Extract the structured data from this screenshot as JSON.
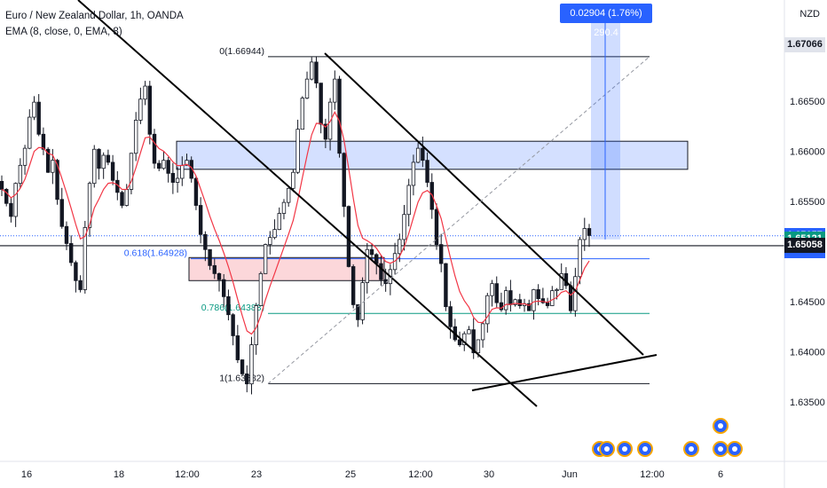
{
  "header": {
    "symbol_line": "Euro / New Zealand Dollar, 1h, OANDA",
    "indicator_line": "EMA (8, close, 0, EMA, 8)",
    "currency": "NZD"
  },
  "measure": {
    "label": "0.02904 (1.76%) 290.4"
  },
  "price_tags": [
    {
      "text": "1.67066",
      "price": 1.67066,
      "bg": "#e0e3eb",
      "fg": "#131722"
    },
    {
      "text": "1.65157",
      "price": 1.65157,
      "bg": "#2962ff",
      "fg": "#ffffff"
    },
    {
      "text": "29:42",
      "price": 1.6501,
      "bg": "#2962ff",
      "fg": "#ffffff"
    },
    {
      "text": "1.65121",
      "price": 1.65121,
      "bg": "#089981",
      "fg": "#ffffff"
    },
    {
      "text": "1.65058",
      "price": 1.65058,
      "bg": "#131722",
      "fg": "#ffffff"
    }
  ],
  "fib_labels": [
    {
      "text": "0(1.66944)",
      "price": 1.66944,
      "color": "#131722"
    },
    {
      "text": "0.618(1.64928)",
      "price": 1.64928,
      "color": "#2962ff"
    },
    {
      "text": "0.786(1.64383)",
      "price": 1.64383,
      "color": "#089981"
    },
    {
      "text": "1(1.63682)",
      "price": 1.63682,
      "color": "#131722"
    }
  ],
  "colors": {
    "up": "#131722",
    "down": "#131722",
    "ema": "#f23645",
    "zone_blue": "#2962ff",
    "zone_red": "#f23645",
    "fib_blue": "#2962ff",
    "fib_green": "#089981"
  },
  "chart_data": {
    "type": "candlestick",
    "title": "Euro / New Zealand Dollar, 1h, OANDA",
    "ylabel": "NZD",
    "ylim": [
      1.6325,
      1.6725
    ],
    "y_ticks": [
      "1.66500",
      "1.66000",
      "1.65500",
      "1.64500",
      "1.64000",
      "1.63500"
    ],
    "y_tick_values": [
      1.665,
      1.66,
      1.655,
      1.645,
      1.64,
      1.635
    ],
    "x_ticks": [
      "16",
      "18",
      "12:00",
      "23",
      "25",
      "12:00",
      "30",
      "Jun",
      "12:00",
      "6"
    ],
    "fib_levels": [
      {
        "ratio": 0,
        "price": 1.66944
      },
      {
        "ratio": 0.618,
        "price": 1.64928
      },
      {
        "ratio": 0.786,
        "price": 1.64383
      },
      {
        "ratio": 1,
        "price": 1.63682
      }
    ],
    "resistance_zone": [
      1.6582,
      1.661
    ],
    "demand_zone": [
      1.6471,
      1.6494
    ],
    "measure": {
      "change": 0.02904,
      "percent": 1.76,
      "pips": 290.4
    },
    "last_price": 1.65157,
    "countdown": "29:42",
    "levels": [
      1.65121,
      1.65058,
      1.67066
    ],
    "ohlc_path": [
      1.6562,
      1.6548,
      1.6535,
      1.6568,
      1.6586,
      1.6603,
      1.6634,
      1.6649,
      1.6617,
      1.6602,
      1.6579,
      1.6591,
      1.6552,
      1.6525,
      1.6508,
      1.6489,
      1.6471,
      1.6462,
      1.6524,
      1.6568,
      1.6602,
      1.6583,
      1.6596,
      1.6589,
      1.6571,
      1.6559,
      1.6546,
      1.6562,
      1.6598,
      1.6631,
      1.6652,
      1.6665,
      1.6617,
      1.6588,
      1.6583,
      1.6591,
      1.6578,
      1.6569,
      1.6573,
      1.6586,
      1.6591,
      1.6573,
      1.6546,
      1.6517,
      1.6502,
      1.6486,
      1.6478,
      1.6472,
      1.6455,
      1.6437,
      1.6416,
      1.6392,
      1.6378,
      1.6368,
      1.6407,
      1.6446,
      1.6478,
      1.6507,
      1.6514,
      1.6522,
      1.6538,
      1.6549,
      1.6563,
      1.6579,
      1.6622,
      1.6653,
      1.6672,
      1.6689,
      1.6668,
      1.6627,
      1.6612,
      1.6649,
      1.6672,
      1.6598,
      1.6545,
      1.6485,
      1.6447,
      1.6432,
      1.6469,
      1.6502,
      1.6497,
      1.6488,
      1.6472,
      1.6468,
      1.6482,
      1.6498,
      1.6512,
      1.6537,
      1.6566,
      1.6589,
      1.6603,
      1.6591,
      1.6569,
      1.6542,
      1.6507,
      1.6488,
      1.6445,
      1.6425,
      1.6412,
      1.6407,
      1.6418,
      1.6422,
      1.6399,
      1.6412,
      1.6428,
      1.6456,
      1.6468,
      1.6449,
      1.6442,
      1.6461,
      1.6447,
      1.6452,
      1.6446,
      1.6448,
      1.6441,
      1.6462,
      1.6453,
      1.6449,
      1.6446,
      1.6461,
      1.6462,
      1.6478,
      1.6466,
      1.6441,
      1.6475,
      1.6512,
      1.6523,
      1.6516
    ]
  }
}
